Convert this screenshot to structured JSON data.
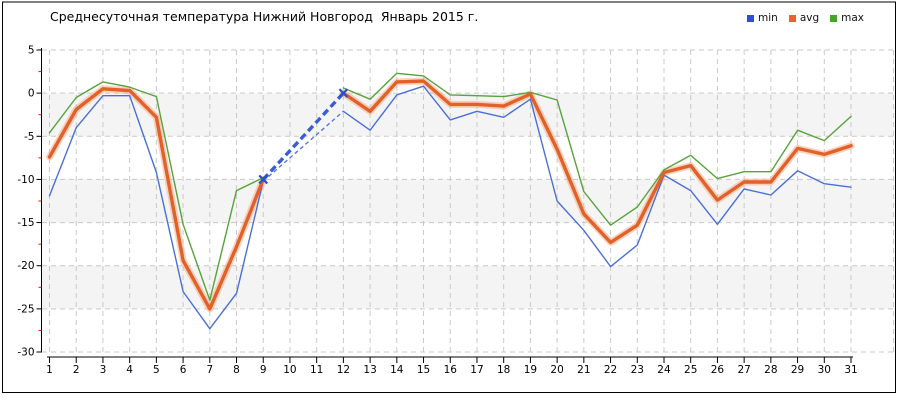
{
  "title": "Среднесуточная температура Нижний Новгород  Январь 2015 г.",
  "legend": {
    "items": [
      {
        "label": "min",
        "color": "#2b50d4"
      },
      {
        "label": "avg",
        "color": "#e8632c"
      },
      {
        "label": "max",
        "color": "#46a428"
      }
    ]
  },
  "chart_data": {
    "type": "line",
    "title": "Среднесуточная температура Нижний Новгород  Январь 2015 г.",
    "xlabel": "",
    "ylabel": "",
    "x": [
      1,
      2,
      3,
      4,
      5,
      6,
      7,
      8,
      9,
      10,
      11,
      12,
      13,
      14,
      15,
      16,
      17,
      18,
      19,
      20,
      21,
      22,
      23,
      24,
      25,
      26,
      27,
      28,
      29,
      30,
      31
    ],
    "series": [
      {
        "name": "min",
        "color": "#4a70d8",
        "width": 1.4,
        "values": [
          -11.9,
          -4.0,
          -0.3,
          -0.3,
          -9.2,
          -23.0,
          -27.3,
          -23.2,
          -10.2,
          null,
          null,
          -2.1,
          -4.3,
          -0.2,
          0.8,
          -3.1,
          -2.1,
          -2.8,
          -0.7,
          -12.5,
          -15.9,
          -20.1,
          -17.6,
          -9.5,
          -11.3,
          -15.2,
          -11.1,
          -11.8,
          -9.0,
          -10.5,
          -10.9
        ]
      },
      {
        "name": "avg",
        "color": "#e2612a",
        "width": 3.4,
        "halo_color": "#f4b08a",
        "values": [
          -7.4,
          -1.9,
          0.5,
          0.3,
          -2.8,
          -19.4,
          -25.0,
          -17.8,
          -10.0,
          null,
          null,
          0.0,
          -2.1,
          1.3,
          1.4,
          -1.3,
          -1.3,
          -1.5,
          -0.1,
          -6.5,
          -14.0,
          -17.3,
          -15.3,
          -9.2,
          -8.4,
          -12.4,
          -10.3,
          -10.3,
          -6.4,
          -7.1,
          -6.1
        ]
      },
      {
        "name": "max",
        "color": "#58a33c",
        "width": 1.4,
        "values": [
          -4.6,
          -0.5,
          1.3,
          0.7,
          -0.4,
          -15.2,
          -24.0,
          -11.3,
          -9.8,
          null,
          null,
          0.6,
          -0.7,
          2.3,
          2.0,
          -0.2,
          -0.3,
          -0.4,
          0.1,
          -0.8,
          -11.4,
          -15.3,
          -13.2,
          -8.9,
          -7.2,
          -9.9,
          -9.1,
          -9.1,
          -4.3,
          -5.5,
          -2.7
        ]
      }
    ],
    "missing_data_gap": {
      "start_day": 9,
      "end_day": 12,
      "dashed_lines": [
        {
          "series": "avg",
          "color": "#3a5cd6",
          "width": 3.4,
          "dash": "7,4"
        },
        {
          "series": "min",
          "color": "#5578dc",
          "width": 1.4,
          "dash": "4,3"
        }
      ],
      "marker": {
        "series": "avg",
        "color": "#2d4fc8",
        "shape": "x"
      }
    },
    "ylim": [
      -30,
      5
    ],
    "yticks": [
      5,
      0,
      -5,
      -10,
      -15,
      -20,
      -25,
      -30
    ],
    "yticks_minor": [
      2.5,
      -2.5,
      -7.5,
      -12.5,
      -17.5,
      -22.5,
      -27.5
    ],
    "gray_bands": [
      [
        0,
        -5
      ],
      [
        -10,
        -15
      ],
      [
        -20,
        -25
      ]
    ],
    "grid": "dashed",
    "legend_position": "top-right",
    "colors": {
      "grid": "#c9c9c9",
      "band": "#f4f4f4",
      "axis": "#000000",
      "minor_tick": "#cc2200",
      "text": "#000000",
      "border": "#000000"
    }
  }
}
